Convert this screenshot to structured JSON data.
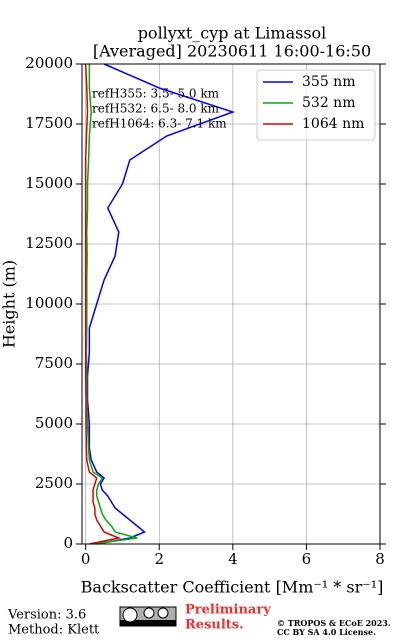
{
  "chart_data": {
    "type": "line",
    "title": "pollyxt_cyp at Limassol",
    "subtitle": "[Averaged] 20230611 16:00-16:50",
    "x_label": "Backscatter Coefficient [Mm⁻¹ * sr⁻¹]",
    "y_label": "Height (m)",
    "xlim": [
      -0.1,
      8
    ],
    "xticks": [
      0,
      2,
      4,
      6,
      8
    ],
    "ylim": [
      0,
      20000
    ],
    "yticks": [
      0,
      2500,
      5000,
      7500,
      10000,
      12500,
      15000,
      17500,
      20000
    ],
    "grid": true,
    "legend": "upper right",
    "y": [
      0,
      250,
      500,
      750,
      1000,
      1250,
      1500,
      1750,
      2000,
      2250,
      2500,
      2750,
      3000,
      3500,
      4000,
      5000,
      6000,
      7000,
      8000,
      9000,
      10000,
      11000,
      12000,
      13000,
      14000,
      15000,
      16000,
      17000,
      18000,
      19000,
      20000
    ],
    "series": [
      {
        "name": "355 nm",
        "color": "#0000ff",
        "values": [
          0.3,
          1.2,
          1.6,
          1.4,
          1.2,
          1.0,
          0.8,
          0.7,
          0.6,
          0.45,
          0.4,
          0.5,
          0.3,
          0.15,
          0.1,
          0.1,
          0.05,
          0.05,
          0.1,
          0.1,
          0.3,
          0.5,
          0.8,
          0.9,
          0.6,
          1.0,
          1.2,
          2.2,
          4.0,
          2.0,
          0.5
        ]
      },
      {
        "name": "532 nm",
        "color": "#00b000",
        "values": [
          0.2,
          1.4,
          0.8,
          0.7,
          0.55,
          0.45,
          0.4,
          0.35,
          0.3,
          0.3,
          0.35,
          0.45,
          0.2,
          0.1,
          0.08,
          0.05,
          0.03,
          0.03,
          0.02,
          0.03,
          0.03,
          0.03,
          0.04,
          0.03,
          0.05,
          0.05,
          0.08,
          0.1,
          0.15,
          0.1,
          0.1
        ]
      },
      {
        "name": "1064 nm",
        "color": "#e00000",
        "values": [
          0.1,
          0.9,
          0.5,
          0.4,
          0.3,
          0.25,
          0.25,
          0.2,
          0.2,
          0.2,
          0.25,
          0.3,
          0.1,
          0.03,
          0.02,
          0.01,
          0.01,
          0,
          0,
          0,
          0,
          0,
          0,
          0,
          0,
          0,
          0,
          0.02,
          0.05,
          0.03,
          0
        ]
      }
    ],
    "annotations": [
      "refH355:  3.5- 5.0 km",
      "refH532:  6.5- 8.0 km",
      "refH1064:  6.3- 7.1 km"
    ],
    "footer": {
      "version": "Version: 3.6",
      "method": "Method: Klett",
      "preliminary": [
        "Preliminary",
        "Results."
      ],
      "copyright": [
        "© TROPOS & ECoE 2023.",
        "CC BY SA 4.0 License."
      ]
    }
  }
}
